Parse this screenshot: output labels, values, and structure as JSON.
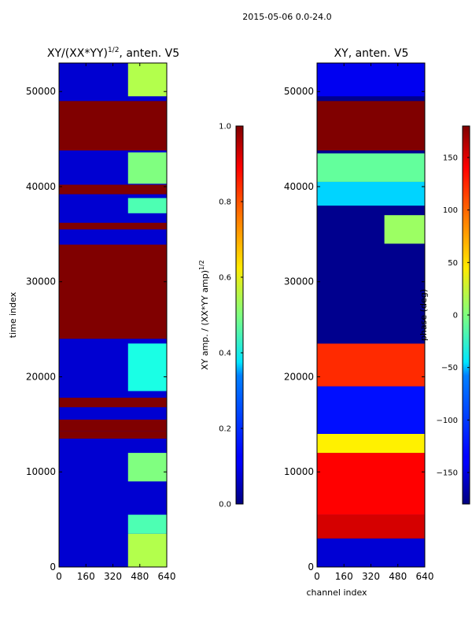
{
  "suptitle": "2015-05-06 0.0-24.0",
  "chart_data": [
    {
      "type": "heatmap",
      "title_base": "XY/(XX*YY)",
      "title_exp": "1/2",
      "title_tail": ", anten. V5",
      "xlabel": "",
      "ylabel": "time index",
      "xlim": [
        0,
        640
      ],
      "ylim": [
        0,
        53000
      ],
      "xticks": [
        "0",
        "160",
        "320",
        "480",
        "640"
      ],
      "yticks": [
        "0",
        "10000",
        "20000",
        "30000",
        "40000",
        "50000"
      ],
      "colorbar": {
        "label_base": "XY amp. / (XX*YY amp)",
        "label_exp": "1/2",
        "vmin": 0.0,
        "vmax": 1.0,
        "ticks": [
          "0.0",
          "0.2",
          "0.4",
          "0.6",
          "0.8",
          "1.0"
        ]
      },
      "background_value": 0.08,
      "bands": [
        {
          "y0": 0,
          "y1": 3500,
          "x0": 410,
          "x1": 640,
          "value": 0.55
        },
        {
          "y0": 3500,
          "y1": 5500,
          "x0": 410,
          "x1": 640,
          "value": 0.45
        },
        {
          "y0": 9000,
          "y1": 12000,
          "x0": 410,
          "x1": 640,
          "value": 0.5
        },
        {
          "y0": 13500,
          "y1": 14300,
          "x0": 0,
          "x1": 640,
          "value": 1.0
        },
        {
          "y0": 14300,
          "y1": 15500,
          "x0": 0,
          "x1": 640,
          "value": 1.0
        },
        {
          "y0": 16800,
          "y1": 17800,
          "x0": 0,
          "x1": 640,
          "value": 1.0
        },
        {
          "y0": 18500,
          "y1": 23500,
          "x0": 410,
          "x1": 640,
          "value": 0.4
        },
        {
          "y0": 24000,
          "y1": 33900,
          "x0": 0,
          "x1": 640,
          "value": 1.0
        },
        {
          "y0": 35500,
          "y1": 36200,
          "x0": 0,
          "x1": 640,
          "value": 1.0
        },
        {
          "y0": 37200,
          "y1": 38800,
          "x0": 410,
          "x1": 640,
          "value": 0.45
        },
        {
          "y0": 39200,
          "y1": 40200,
          "x0": 0,
          "x1": 640,
          "value": 1.0
        },
        {
          "y0": 40300,
          "y1": 43600,
          "x0": 410,
          "x1": 640,
          "value": 0.5
        },
        {
          "y0": 43800,
          "y1": 49000,
          "x0": 0,
          "x1": 640,
          "value": 1.0
        },
        {
          "y0": 49500,
          "y1": 53000,
          "x0": 410,
          "x1": 640,
          "value": 0.55
        }
      ]
    },
    {
      "type": "heatmap",
      "title_base": "XY, anten. V5",
      "title_exp": "",
      "title_tail": "",
      "xlabel": "channel index",
      "ylabel": "",
      "xlim": [
        0,
        640
      ],
      "ylim": [
        0,
        53000
      ],
      "xticks": [
        "0",
        "160",
        "320",
        "480",
        "640"
      ],
      "yticks": [
        "0",
        "10000",
        "20000",
        "30000",
        "40000",
        "50000"
      ],
      "colorbar": {
        "label_base": "phase (deg)",
        "label_exp": "",
        "vmin": -180,
        "vmax": 180,
        "ticks": [
          "−150",
          "−100",
          "−50",
          "0",
          "50",
          "100",
          "150"
        ]
      },
      "background_value": -175,
      "bands": [
        {
          "y0": 0,
          "y1": 3000,
          "x0": 0,
          "x1": 640,
          "value": -150
        },
        {
          "y0": 3000,
          "y1": 5500,
          "x0": 0,
          "x1": 640,
          "value": 150
        },
        {
          "y0": 5500,
          "y1": 12000,
          "x0": 0,
          "x1": 640,
          "value": 135
        },
        {
          "y0": 12000,
          "y1": 14000,
          "x0": 0,
          "x1": 640,
          "value": 50
        },
        {
          "y0": 14000,
          "y1": 19000,
          "x0": 0,
          "x1": 640,
          "value": -130
        },
        {
          "y0": 19000,
          "y1": 23500,
          "x0": 0,
          "x1": 640,
          "value": 120
        },
        {
          "y0": 23500,
          "y1": 33900,
          "x0": 0,
          "x1": 640,
          "value": -175
        },
        {
          "y0": 34000,
          "y1": 37000,
          "x0": 400,
          "x1": 640,
          "value": 10
        },
        {
          "y0": 38000,
          "y1": 40500,
          "x0": 0,
          "x1": 640,
          "value": -60
        },
        {
          "y0": 40500,
          "y1": 43500,
          "x0": 0,
          "x1": 640,
          "value": -10
        },
        {
          "y0": 43800,
          "y1": 49000,
          "x0": 0,
          "x1": 640,
          "value": 180
        },
        {
          "y0": 49500,
          "y1": 53000,
          "x0": 0,
          "x1": 640,
          "value": -140
        }
      ]
    }
  ]
}
